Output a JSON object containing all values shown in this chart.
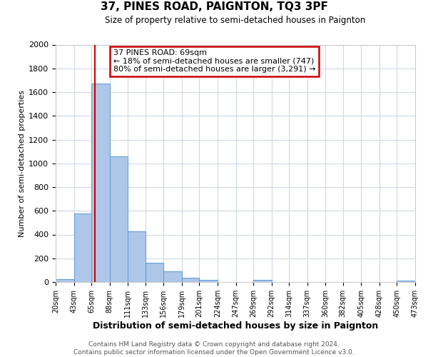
{
  "title": "37, PINES ROAD, PAIGNTON, TQ3 3PF",
  "subtitle": "Size of property relative to semi-detached houses in Paignton",
  "xlabel": "Distribution of semi-detached houses by size in Paignton",
  "ylabel": "Number of semi-detached properties",
  "footnote1": "Contains HM Land Registry data © Crown copyright and database right 2024.",
  "footnote2": "Contains public sector information licensed under the Open Government Licence v3.0.",
  "bar_left_edges": [
    20,
    43,
    65,
    88,
    111,
    133,
    156,
    179,
    201,
    224,
    247,
    269,
    292,
    314,
    337,
    360,
    382,
    405,
    428,
    450
  ],
  "bar_widths": [
    23,
    22,
    23,
    23,
    22,
    23,
    23,
    22,
    23,
    23,
    22,
    23,
    22,
    23,
    23,
    22,
    23,
    23,
    22,
    23
  ],
  "bar_heights": [
    25,
    580,
    1670,
    1060,
    430,
    160,
    90,
    38,
    20,
    0,
    0,
    20,
    0,
    0,
    0,
    0,
    0,
    0,
    0,
    10
  ],
  "bar_color": "#aec6e8",
  "bar_edgecolor": "#5b9bd5",
  "property_line_x": 69,
  "property_line_color": "#cc0000",
  "annotation_line1": "37 PINES ROAD: 69sqm",
  "annotation_line2": "← 18% of semi-detached houses are smaller (747)",
  "annotation_line3": "80% of semi-detached houses are larger (3,291) →",
  "annotation_box_color": "#cc0000",
  "ylim": [
    0,
    2000
  ],
  "xlim": [
    20,
    473
  ],
  "tick_labels": [
    "20sqm",
    "43sqm",
    "65sqm",
    "88sqm",
    "111sqm",
    "133sqm",
    "156sqm",
    "179sqm",
    "201sqm",
    "224sqm",
    "247sqm",
    "269sqm",
    "292sqm",
    "314sqm",
    "337sqm",
    "360sqm",
    "382sqm",
    "405sqm",
    "428sqm",
    "450sqm",
    "473sqm"
  ],
  "tick_positions": [
    20,
    43,
    65,
    88,
    111,
    133,
    156,
    179,
    201,
    224,
    247,
    269,
    292,
    314,
    337,
    360,
    382,
    405,
    428,
    450,
    473
  ],
  "yticks": [
    0,
    200,
    400,
    600,
    800,
    1000,
    1200,
    1400,
    1600,
    1800,
    2000
  ],
  "background_color": "#ffffff",
  "grid_color": "#d0d8e8"
}
